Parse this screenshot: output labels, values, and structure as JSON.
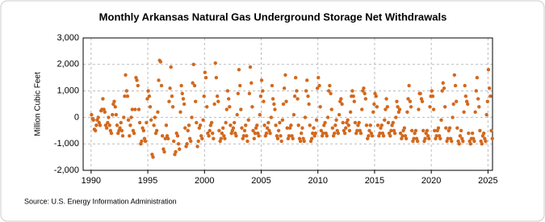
{
  "chart_data": {
    "type": "scatter",
    "title": "Monthly Arkansas Natural Gas Underground Storage Net Withdrawals",
    "ylabel": "Million Cubic Feet",
    "source": "Source: U.S. Energy Information Administration",
    "color": "#d2691e",
    "grid": true,
    "xlim": [
      1989.3,
      2025.4
    ],
    "xticks": [
      1990,
      1995,
      2000,
      2005,
      2010,
      2015,
      2020,
      2025
    ],
    "ylim": [
      -2000,
      3000
    ],
    "yticks": [
      {
        "value": -2000,
        "label": "-2,000"
      },
      {
        "value": -1000,
        "label": "-1,000"
      },
      0,
      {
        "value": 1000,
        "label": "1,000"
      },
      {
        "value": 2000,
        "label": "2,000"
      },
      {
        "value": 3000,
        "label": "3,000"
      }
    ],
    "x": [
      1990.04,
      1990.13,
      1990.21,
      1990.29,
      1990.38,
      1990.46,
      1990.54,
      1990.63,
      1990.71,
      1990.79,
      1990.88,
      1990.96,
      1991.04,
      1991.13,
      1991.21,
      1991.29,
      1991.38,
      1991.46,
      1991.54,
      1991.63,
      1991.71,
      1991.79,
      1991.88,
      1991.96,
      1992.04,
      1992.13,
      1992.21,
      1992.29,
      1992.38,
      1992.46,
      1992.54,
      1992.63,
      1992.71,
      1992.79,
      1992.88,
      1992.96,
      1993.04,
      1993.13,
      1993.21,
      1993.29,
      1993.38,
      1993.46,
      1993.54,
      1993.63,
      1993.71,
      1993.79,
      1993.88,
      1993.96,
      1994.04,
      1994.13,
      1994.21,
      1994.29,
      1994.38,
      1994.46,
      1994.54,
      1994.63,
      1994.71,
      1994.79,
      1994.88,
      1994.96,
      1995.04,
      1995.13,
      1995.21,
      1995.29,
      1995.38,
      1995.46,
      1995.54,
      1995.63,
      1995.71,
      1995.79,
      1995.88,
      1995.96,
      1996.04,
      1996.13,
      1996.21,
      1996.29,
      1996.38,
      1996.46,
      1996.54,
      1996.63,
      1996.71,
      1996.79,
      1996.88,
      1996.96,
      1997.04,
      1997.13,
      1997.21,
      1997.29,
      1997.38,
      1997.46,
      1997.54,
      1997.63,
      1997.71,
      1997.79,
      1997.88,
      1997.96,
      1998.04,
      1998.13,
      1998.21,
      1998.29,
      1998.38,
      1998.46,
      1998.54,
      1998.63,
      1998.71,
      1998.79,
      1998.88,
      1998.96,
      1999.04,
      1999.13,
      1999.21,
      1999.29,
      1999.38,
      1999.46,
      1999.54,
      1999.63,
      1999.71,
      1999.79,
      1999.88,
      1999.96,
      2000.04,
      2000.13,
      2000.21,
      2000.29,
      2000.38,
      2000.46,
      2000.54,
      2000.63,
      2000.71,
      2000.79,
      2000.88,
      2000.96,
      2001.04,
      2001.13,
      2001.21,
      2001.29,
      2001.38,
      2001.46,
      2001.54,
      2001.63,
      2001.71,
      2001.79,
      2001.88,
      2001.96,
      2002.04,
      2002.13,
      2002.21,
      2002.29,
      2002.38,
      2002.46,
      2002.54,
      2002.63,
      2002.71,
      2002.79,
      2002.88,
      2002.96,
      2003.04,
      2003.13,
      2003.21,
      2003.29,
      2003.38,
      2003.46,
      2003.54,
      2003.63,
      2003.71,
      2003.79,
      2003.88,
      2003.96,
      2004.04,
      2004.13,
      2004.21,
      2004.29,
      2004.38,
      2004.46,
      2004.54,
      2004.63,
      2004.71,
      2004.79,
      2004.88,
      2004.96,
      2005.04,
      2005.13,
      2005.21,
      2005.29,
      2005.38,
      2005.46,
      2005.54,
      2005.63,
      2005.71,
      2005.79,
      2005.88,
      2005.96,
      2006.04,
      2006.13,
      2006.21,
      2006.29,
      2006.38,
      2006.46,
      2006.54,
      2006.63,
      2006.71,
      2006.79,
      2006.88,
      2006.96,
      2007.04,
      2007.13,
      2007.21,
      2007.29,
      2007.38,
      2007.46,
      2007.54,
      2007.63,
      2007.71,
      2007.79,
      2007.88,
      2007.96,
      2008.04,
      2008.13,
      2008.21,
      2008.29,
      2008.38,
      2008.46,
      2008.54,
      2008.63,
      2008.71,
      2008.79,
      2008.88,
      2008.96,
      2009.04,
      2009.13,
      2009.21,
      2009.29,
      2009.38,
      2009.46,
      2009.54,
      2009.63,
      2009.71,
      2009.79,
      2009.88,
      2009.96,
      2010.04,
      2010.13,
      2010.21,
      2010.29,
      2010.38,
      2010.46,
      2010.54,
      2010.63,
      2010.71,
      2010.79,
      2010.88,
      2010.96,
      2011.04,
      2011.13,
      2011.21,
      2011.29,
      2011.38,
      2011.46,
      2011.54,
      2011.63,
      2011.71,
      2011.79,
      2011.88,
      2011.96,
      2012.04,
      2012.13,
      2012.21,
      2012.29,
      2012.38,
      2012.46,
      2012.54,
      2012.63,
      2012.71,
      2012.79,
      2012.88,
      2012.96,
      2013.04,
      2013.13,
      2013.21,
      2013.29,
      2013.38,
      2013.46,
      2013.54,
      2013.63,
      2013.71,
      2013.79,
      2013.88,
      2013.96,
      2014.04,
      2014.13,
      2014.21,
      2014.29,
      2014.38,
      2014.46,
      2014.54,
      2014.63,
      2014.71,
      2014.79,
      2014.88,
      2014.96,
      2015.04,
      2015.13,
      2015.21,
      2015.29,
      2015.38,
      2015.46,
      2015.54,
      2015.63,
      2015.71,
      2015.79,
      2015.88,
      2015.96,
      2016.04,
      2016.13,
      2016.21,
      2016.29,
      2016.38,
      2016.46,
      2016.54,
      2016.63,
      2016.71,
      2016.79,
      2016.88,
      2016.96,
      2017.04,
      2017.13,
      2017.21,
      2017.29,
      2017.38,
      2017.46,
      2017.54,
      2017.63,
      2017.71,
      2017.79,
      2017.88,
      2017.96,
      2018.04,
      2018.13,
      2018.21,
      2018.29,
      2018.38,
      2018.46,
      2018.54,
      2018.63,
      2018.71,
      2018.79,
      2018.88,
      2018.96,
      2019.04,
      2019.13,
      2019.21,
      2019.29,
      2019.38,
      2019.46,
      2019.54,
      2019.63,
      2019.71,
      2019.79,
      2019.88,
      2019.96,
      2020.04,
      2020.13,
      2020.21,
      2020.29,
      2020.38,
      2020.46,
      2020.54,
      2020.63,
      2020.71,
      2020.79,
      2020.88,
      2020.96,
      2021.04,
      2021.13,
      2021.21,
      2021.29,
      2021.38,
      2021.46,
      2021.54,
      2021.63,
      2021.71,
      2021.79,
      2021.88,
      2021.96,
      2022.04,
      2022.13,
      2022.21,
      2022.29,
      2022.38,
      2022.46,
      2022.54,
      2022.63,
      2022.71,
      2022.79,
      2022.88,
      2022.96,
      2023.04,
      2023.13,
      2023.21,
      2023.29,
      2023.38,
      2023.46,
      2023.54,
      2023.63,
      2023.71,
      2023.79,
      2023.88,
      2023.96,
      2024.04,
      2024.13,
      2024.21,
      2024.29,
      2024.38,
      2024.46,
      2024.54,
      2024.63,
      2024.71,
      2024.79,
      2024.88,
      2024.96,
      2025.04,
      2025.13,
      2025.21,
      2025.29,
      2025.38
    ],
    "values": [
      100,
      -50,
      -100,
      -450,
      -500,
      -300,
      -100,
      0,
      -200,
      -300,
      250,
      300,
      700,
      300,
      200,
      -300,
      -400,
      -200,
      0,
      -300,
      -500,
      -600,
      100,
      500,
      600,
      400,
      100,
      -300,
      -600,
      -500,
      -400,
      -200,
      -500,
      -700,
      0,
      800,
      1600,
      1000,
      800,
      -100,
      -700,
      -300,
      0,
      300,
      -500,
      -600,
      300,
      1500,
      1400,
      1200,
      300,
      -200,
      -1000,
      -900,
      -400,
      -500,
      -800,
      -900,
      -200,
      700,
      1000,
      800,
      400,
      -100,
      -1400,
      -1500,
      -300,
      0,
      -600,
      -500,
      200,
      1400,
      2150,
      2100,
      1200,
      -700,
      -1200,
      -1300,
      -800,
      -300,
      -700,
      -800,
      600,
      1100,
      1900,
      800,
      400,
      -900,
      -1400,
      -1300,
      -600,
      -700,
      -1000,
      -1200,
      200,
      1200,
      900,
      700,
      500,
      -400,
      -1100,
      -1000,
      -500,
      -300,
      -800,
      -900,
      0,
      1300,
      2000,
      1200,
      600,
      -200,
      -1100,
      -900,
      -400,
      -300,
      -700,
      -800,
      -100,
      800,
      1700,
      1500,
      400,
      -600,
      -700,
      -500,
      -300,
      -200,
      -600,
      -800,
      500,
      2050,
      1500,
      800,
      600,
      -500,
      -900,
      -800,
      -600,
      -400,
      -700,
      -800,
      -200,
      300,
      1000,
      700,
      400,
      -300,
      -600,
      -500,
      -400,
      -200,
      -600,
      -700,
      100,
      900,
      1800,
      1200,
      300,
      -400,
      -800,
      -700,
      -500,
      -300,
      -700,
      -900,
      -100,
      900,
      1900,
      1300,
      400,
      -500,
      -800,
      -600,
      -400,
      -300,
      -600,
      -700,
      100,
      800,
      1400,
      1000,
      600,
      -300,
      -700,
      -600,
      -400,
      -200,
      -500,
      -600,
      0,
      1200,
      700,
      500,
      300,
      -300,
      -700,
      -800,
      -500,
      -200,
      -700,
      -900,
      -100,
      500,
      1100,
      1600,
      600,
      -400,
      -800,
      -700,
      -400,
      -300,
      -700,
      -800,
      100,
      800,
      1500,
      1000,
      700,
      -300,
      -800,
      -900,
      -600,
      -400,
      -800,
      -900,
      0,
      1000,
      1400,
      800,
      500,
      -300,
      -900,
      -800,
      -600,
      -400,
      -700,
      -600,
      -100,
      1100,
      1500,
      1200,
      400,
      -500,
      -700,
      -600,
      -300,
      -200,
      -600,
      -700,
      0,
      1000,
      1200,
      900,
      300,
      -400,
      -700,
      -600,
      -300,
      -100,
      -500,
      -600,
      100,
      600,
      700,
      500,
      -200,
      -500,
      -600,
      -400,
      -200,
      -100,
      -300,
      -500,
      200,
      800,
      1000,
      800,
      600,
      -200,
      -600,
      -500,
      -300,
      -200,
      -500,
      -600,
      300,
      1000,
      1100,
      900,
      700,
      -300,
      -800,
      -700,
      -500,
      -300,
      -600,
      -700,
      200,
      500,
      900,
      800,
      400,
      -300,
      -700,
      -600,
      -400,
      -300,
      -600,
      -700,
      -100,
      300,
      700,
      400,
      -200,
      -600,
      -700,
      -500,
      -300,
      -200,
      -500,
      -600,
      0,
      600,
      400,
      200,
      300,
      -600,
      -800,
      -700,
      -500,
      -400,
      -700,
      -800,
      200,
      700,
      1200,
      600,
      400,
      -500,
      -900,
      -800,
      -600,
      -500,
      -800,
      -900,
      300,
      900,
      900,
      700,
      600,
      -500,
      -900,
      -800,
      -600,
      -500,
      -700,
      -800,
      400,
      800,
      1000,
      800,
      300,
      -500,
      -800,
      -700,
      -500,
      -400,
      -700,
      -800,
      -100,
      1000,
      1300,
      1100,
      400,
      -400,
      -900,
      -800,
      -500,
      -400,
      -800,
      -900,
      0,
      500,
      1600,
      1200,
      600,
      -400,
      -900,
      -1000,
      -700,
      -500,
      -800,
      -900,
      200,
      1200,
      800,
      600,
      500,
      -600,
      -900,
      -1000,
      -800,
      -600,
      -800,
      -900,
      200,
      1000,
      1500,
      700,
      400,
      -500,
      -900,
      -1000,
      -700,
      -600,
      -800,
      -900,
      100,
      600,
      1800,
      1100,
      800,
      -500,
      -800
    ]
  }
}
